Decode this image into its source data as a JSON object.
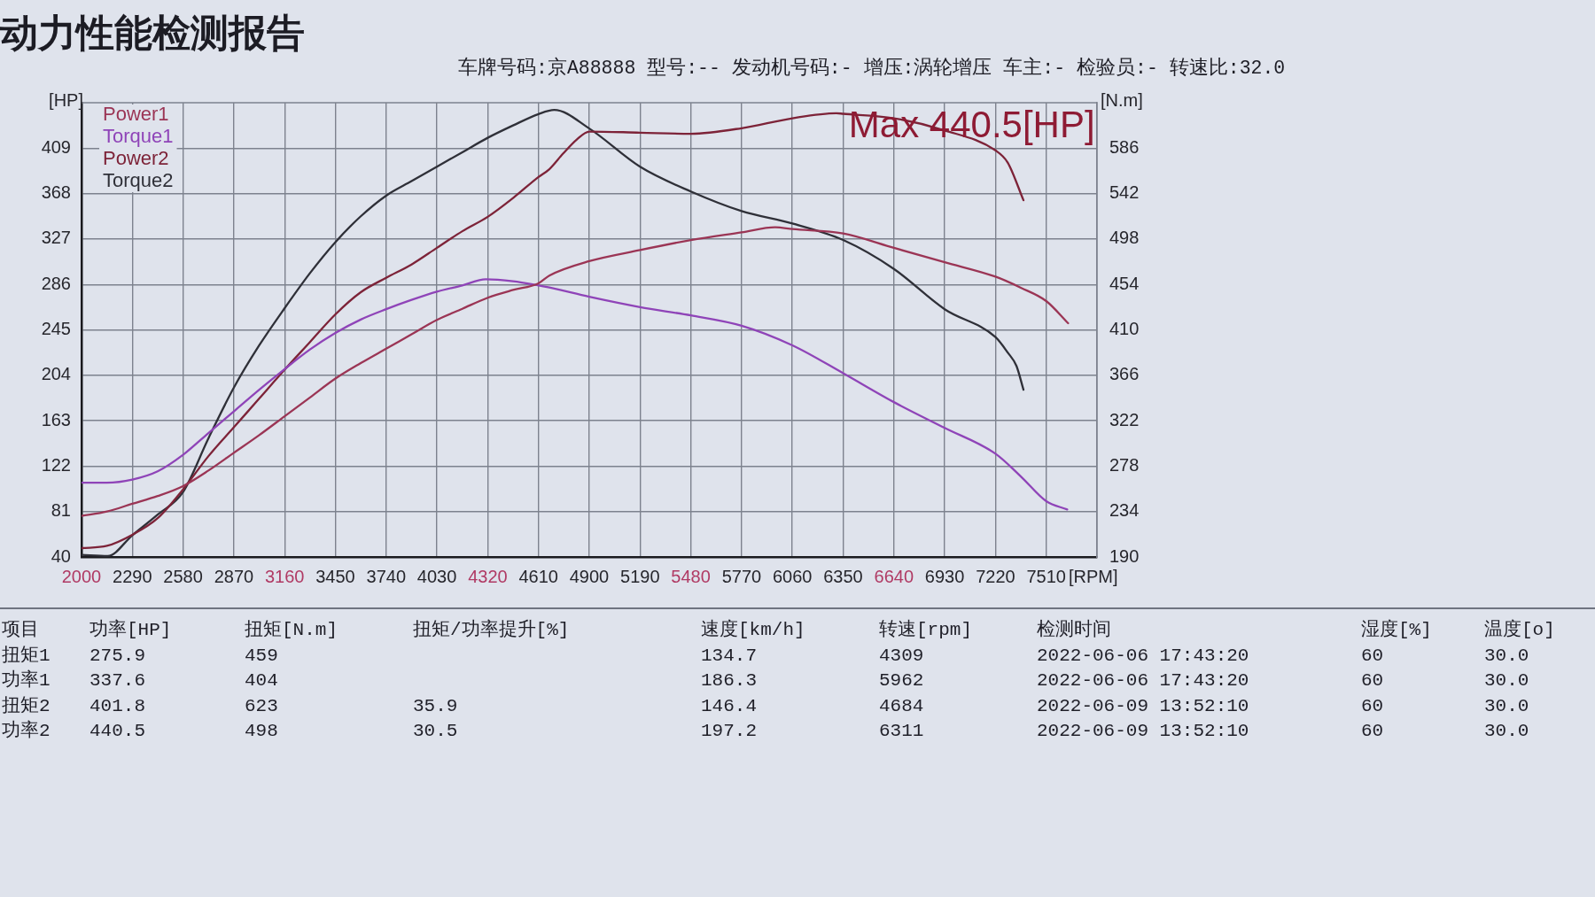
{
  "chart_data": [
    {
      "type": "line",
      "title": "动力性能检测报告",
      "subtitle": "车牌号码:京A88888 型号:-- 发动机号码:- 增压:涡轮增压 车主:- 检验员:- 转速比:32.0",
      "xlabel": "[RPM]",
      "ylabel": "[HP]",
      "y2label": "[N.m]",
      "xlim": [
        2000,
        7800
      ],
      "xticks": [
        2000,
        2290,
        2580,
        2870,
        3160,
        3450,
        3740,
        4030,
        4320,
        4610,
        4900,
        5190,
        5480,
        5770,
        6060,
        6350,
        6640,
        6930,
        7220,
        7510
      ],
      "ylim": [
        40,
        450
      ],
      "yticks": [
        40,
        81,
        122,
        163,
        204,
        245,
        286,
        327,
        368,
        409
      ],
      "y2lim": [
        190,
        630
      ],
      "y2ticks": [
        190,
        234,
        278,
        322,
        366,
        410,
        454,
        498,
        542,
        586
      ],
      "grid": true,
      "legend": "top left",
      "series": [
        {
          "name": "Power1",
          "color": "#9b3555",
          "x": [
            2000,
            2145,
            2290,
            2435,
            2580,
            2725,
            2870,
            3015,
            3160,
            3305,
            3450,
            3595,
            3740,
            3885,
            4030,
            4175,
            4320,
            4465,
            4610,
            4672,
            4900,
            5190,
            5480,
            5770,
            5962,
            6060,
            6350,
            6640,
            6930,
            7220,
            7365,
            7510,
            7635
          ],
          "values": [
            77,
            81,
            88,
            95,
            104,
            118,
            134,
            150,
            167,
            184,
            201,
            215,
            228,
            241,
            254,
            264,
            274,
            281,
            287,
            294,
            307,
            317,
            326,
            333,
            337.6,
            336,
            332,
            319,
            306,
            293,
            283,
            271,
            251
          ]
        },
        {
          "name": "Torque1",
          "color": "#8f44b8",
          "axis": "y2",
          "x": [
            2000,
            2145,
            2290,
            2435,
            2580,
            2725,
            2870,
            3015,
            3160,
            3305,
            3450,
            3595,
            3740,
            3885,
            4030,
            4175,
            4309,
            4465,
            4610,
            4672,
            4900,
            5190,
            5480,
            5770,
            6060,
            6350,
            6640,
            6930,
            7220,
            7365,
            7510,
            7630
          ],
          "values": [
            262,
            262,
            265,
            273,
            289,
            310,
            331,
            352,
            372,
            391,
            407,
            420,
            430,
            439,
            447,
            453,
            459,
            457,
            453,
            451,
            442,
            432,
            424,
            414,
            395,
            368,
            340,
            315,
            290,
            268,
            244,
            236
          ]
        },
        {
          "name": "Power2",
          "color": "#7d2338",
          "x": [
            2000,
            2145,
            2290,
            2435,
            2580,
            2725,
            2870,
            3015,
            3160,
            3305,
            3450,
            3595,
            3740,
            3885,
            4030,
            4175,
            4320,
            4465,
            4610,
            4672,
            4750,
            4830,
            4900,
            5190,
            5480,
            5770,
            6060,
            6311,
            6350,
            6640,
            6930,
            7220,
            7290,
            7380
          ],
          "values": [
            48,
            50,
            60,
            75,
            101,
            131,
            157,
            183,
            209,
            234,
            259,
            279,
            292,
            304,
            319,
            334,
            347,
            364,
            383,
            390,
            404,
            417,
            424,
            423,
            422,
            427,
            436,
            440.5,
            440,
            436,
            425,
            407,
            396,
            362
          ]
        },
        {
          "name": "Torque2",
          "color": "#2f3038",
          "axis": "y2",
          "x": [
            2000,
            2150,
            2290,
            2435,
            2580,
            2725,
            2870,
            3015,
            3160,
            3305,
            3450,
            3595,
            3740,
            3885,
            4030,
            4175,
            4320,
            4465,
            4610,
            4700,
            4900,
            5190,
            5480,
            5770,
            6060,
            6350,
            6640,
            6930,
            7220,
            7290,
            7340,
            7380
          ],
          "values": [
            192,
            191,
            211,
            231,
            253,
            305,
            354,
            395,
            431,
            465,
            495,
            520,
            540,
            554,
            568,
            582,
            596,
            608,
            619,
            623,
            605,
            568,
            544,
            525,
            513,
            497,
            469,
            430,
            403,
            388,
            375,
            352
          ]
        }
      ],
      "annotations": [
        {
          "text": "Max 440.5[HP]",
          "x": 6311,
          "y": 440.5
        }
      ]
    },
    {
      "type": "other",
      "ylabel": "项目",
      "categories": [
        "功率[HP]",
        "扭矩[N.m]",
        "扭矩/功率提升[%]",
        "速度[km/h]",
        "转速[rpm]",
        "检测时间",
        "湿度[%]",
        "温度[o]"
      ],
      "y_categories": [
        "扭矩1",
        "功率1",
        "扭矩2",
        "功率2"
      ],
      "cell_labels": [
        [
          "275.9",
          "459",
          null,
          "134.7",
          "4309",
          "2022-06-06 17:43:20",
          "60",
          "30.0"
        ],
        [
          "337.6",
          "404",
          null,
          "186.3",
          "5962",
          "2022-06-06 17:43:20",
          "60",
          "30.0"
        ],
        [
          "401.8",
          "623",
          "35.9",
          "146.4",
          "4684",
          "2022-06-09 13:52:10",
          "60",
          "30.0"
        ],
        [
          "440.5",
          "498",
          "30.5",
          "197.2",
          "6311",
          "2022-06-09 13:52:10",
          "60",
          "30.0"
        ]
      ]
    }
  ]
}
